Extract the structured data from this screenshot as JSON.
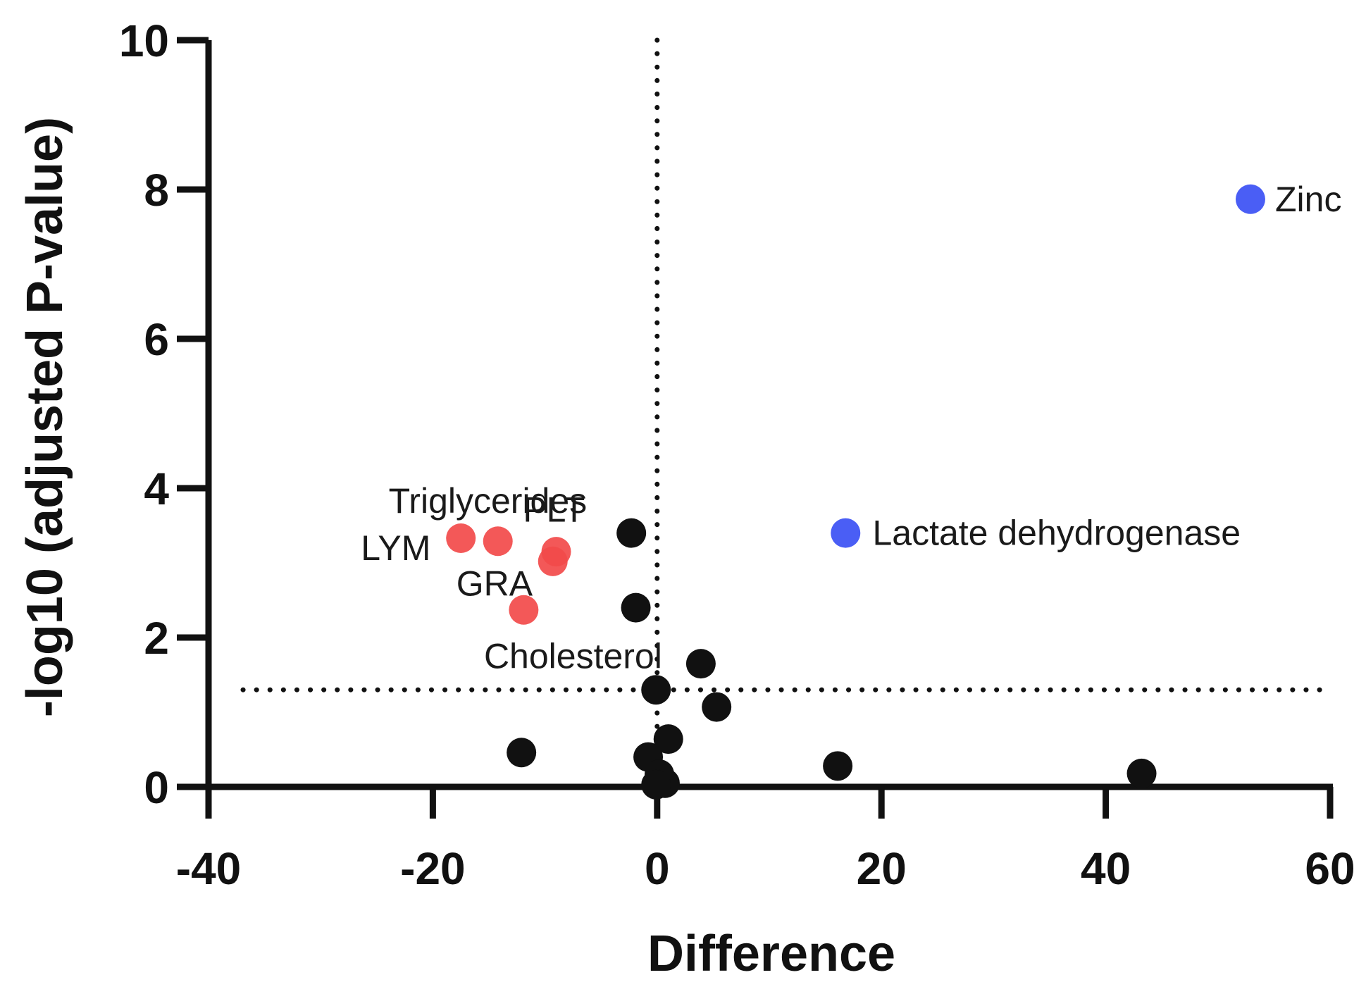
{
  "chart_data": {
    "type": "scatter",
    "title": "",
    "xlabel": "Difference",
    "ylabel": "-log10 (adjusted P-value)",
    "xlim": [
      -40,
      60
    ],
    "ylim": [
      0,
      10
    ],
    "x_ticks": [
      -40,
      -20,
      0,
      20,
      40,
      60
    ],
    "y_ticks": [
      0,
      2,
      4,
      6,
      8,
      10
    ],
    "x_tick_labels": [
      "-40",
      "-20",
      "0",
      "20",
      "40",
      "60"
    ],
    "y_tick_labels": [
      "0",
      "2",
      "4",
      "6",
      "8",
      "10"
    ],
    "threshold_lines": {
      "vertical_x": 0,
      "horizontal_y": 1.3
    },
    "colors": {
      "decreased": "#f24a4a",
      "increased": "#4a5ef5",
      "nonsignificant": "#111111",
      "axis": "#111111"
    },
    "points": [
      {
        "x": -17.5,
        "y": 3.33,
        "group": "decreased"
      },
      {
        "x": -14.2,
        "y": 3.29,
        "group": "decreased"
      },
      {
        "x": -9.0,
        "y": 3.15,
        "group": "decreased"
      },
      {
        "x": -9.3,
        "y": 3.02,
        "group": "decreased"
      },
      {
        "x": -11.9,
        "y": 2.37,
        "group": "decreased"
      },
      {
        "x": 16.8,
        "y": 3.4,
        "group": "increased"
      },
      {
        "x": 52.9,
        "y": 7.87,
        "group": "increased"
      },
      {
        "x": -2.3,
        "y": 3.4,
        "group": "nonsignificant"
      },
      {
        "x": -1.9,
        "y": 2.4,
        "group": "nonsignificant"
      },
      {
        "x": 3.9,
        "y": 1.65,
        "group": "nonsignificant"
      },
      {
        "x": -0.1,
        "y": 1.3,
        "group": "nonsignificant"
      },
      {
        "x": 5.3,
        "y": 1.07,
        "group": "nonsignificant"
      },
      {
        "x": 1.0,
        "y": 0.64,
        "group": "nonsignificant"
      },
      {
        "x": -12.1,
        "y": 0.46,
        "group": "nonsignificant"
      },
      {
        "x": -0.8,
        "y": 0.4,
        "group": "nonsignificant"
      },
      {
        "x": 16.1,
        "y": 0.28,
        "group": "nonsignificant"
      },
      {
        "x": 43.2,
        "y": 0.18,
        "group": "nonsignificant"
      },
      {
        "x": 0.2,
        "y": 0.17,
        "group": "nonsignificant"
      },
      {
        "x": 0.7,
        "y": 0.05,
        "group": "nonsignificant"
      },
      {
        "x": -0.1,
        "y": 0.03,
        "group": "nonsignificant"
      }
    ],
    "annotations": [
      {
        "text": "Triglycerides",
        "x": -15.1,
        "y": 3.83,
        "anchor": "middle"
      },
      {
        "text": "PLT",
        "x": -9.2,
        "y": 3.71,
        "anchor": "middle"
      },
      {
        "text": "LYM",
        "x": -23.3,
        "y": 3.2,
        "anchor": "middle"
      },
      {
        "text": "GRA",
        "x": -14.5,
        "y": 2.72,
        "anchor": "middle"
      },
      {
        "text": "Cholesterol",
        "x": -7.5,
        "y": 1.75,
        "anchor": "middle"
      },
      {
        "text": "Lactate dehydrogenase",
        "x": 19.2,
        "y": 3.4,
        "anchor": "start"
      },
      {
        "text": "Zinc",
        "x": 55.1,
        "y": 7.87,
        "anchor": "start"
      }
    ]
  }
}
